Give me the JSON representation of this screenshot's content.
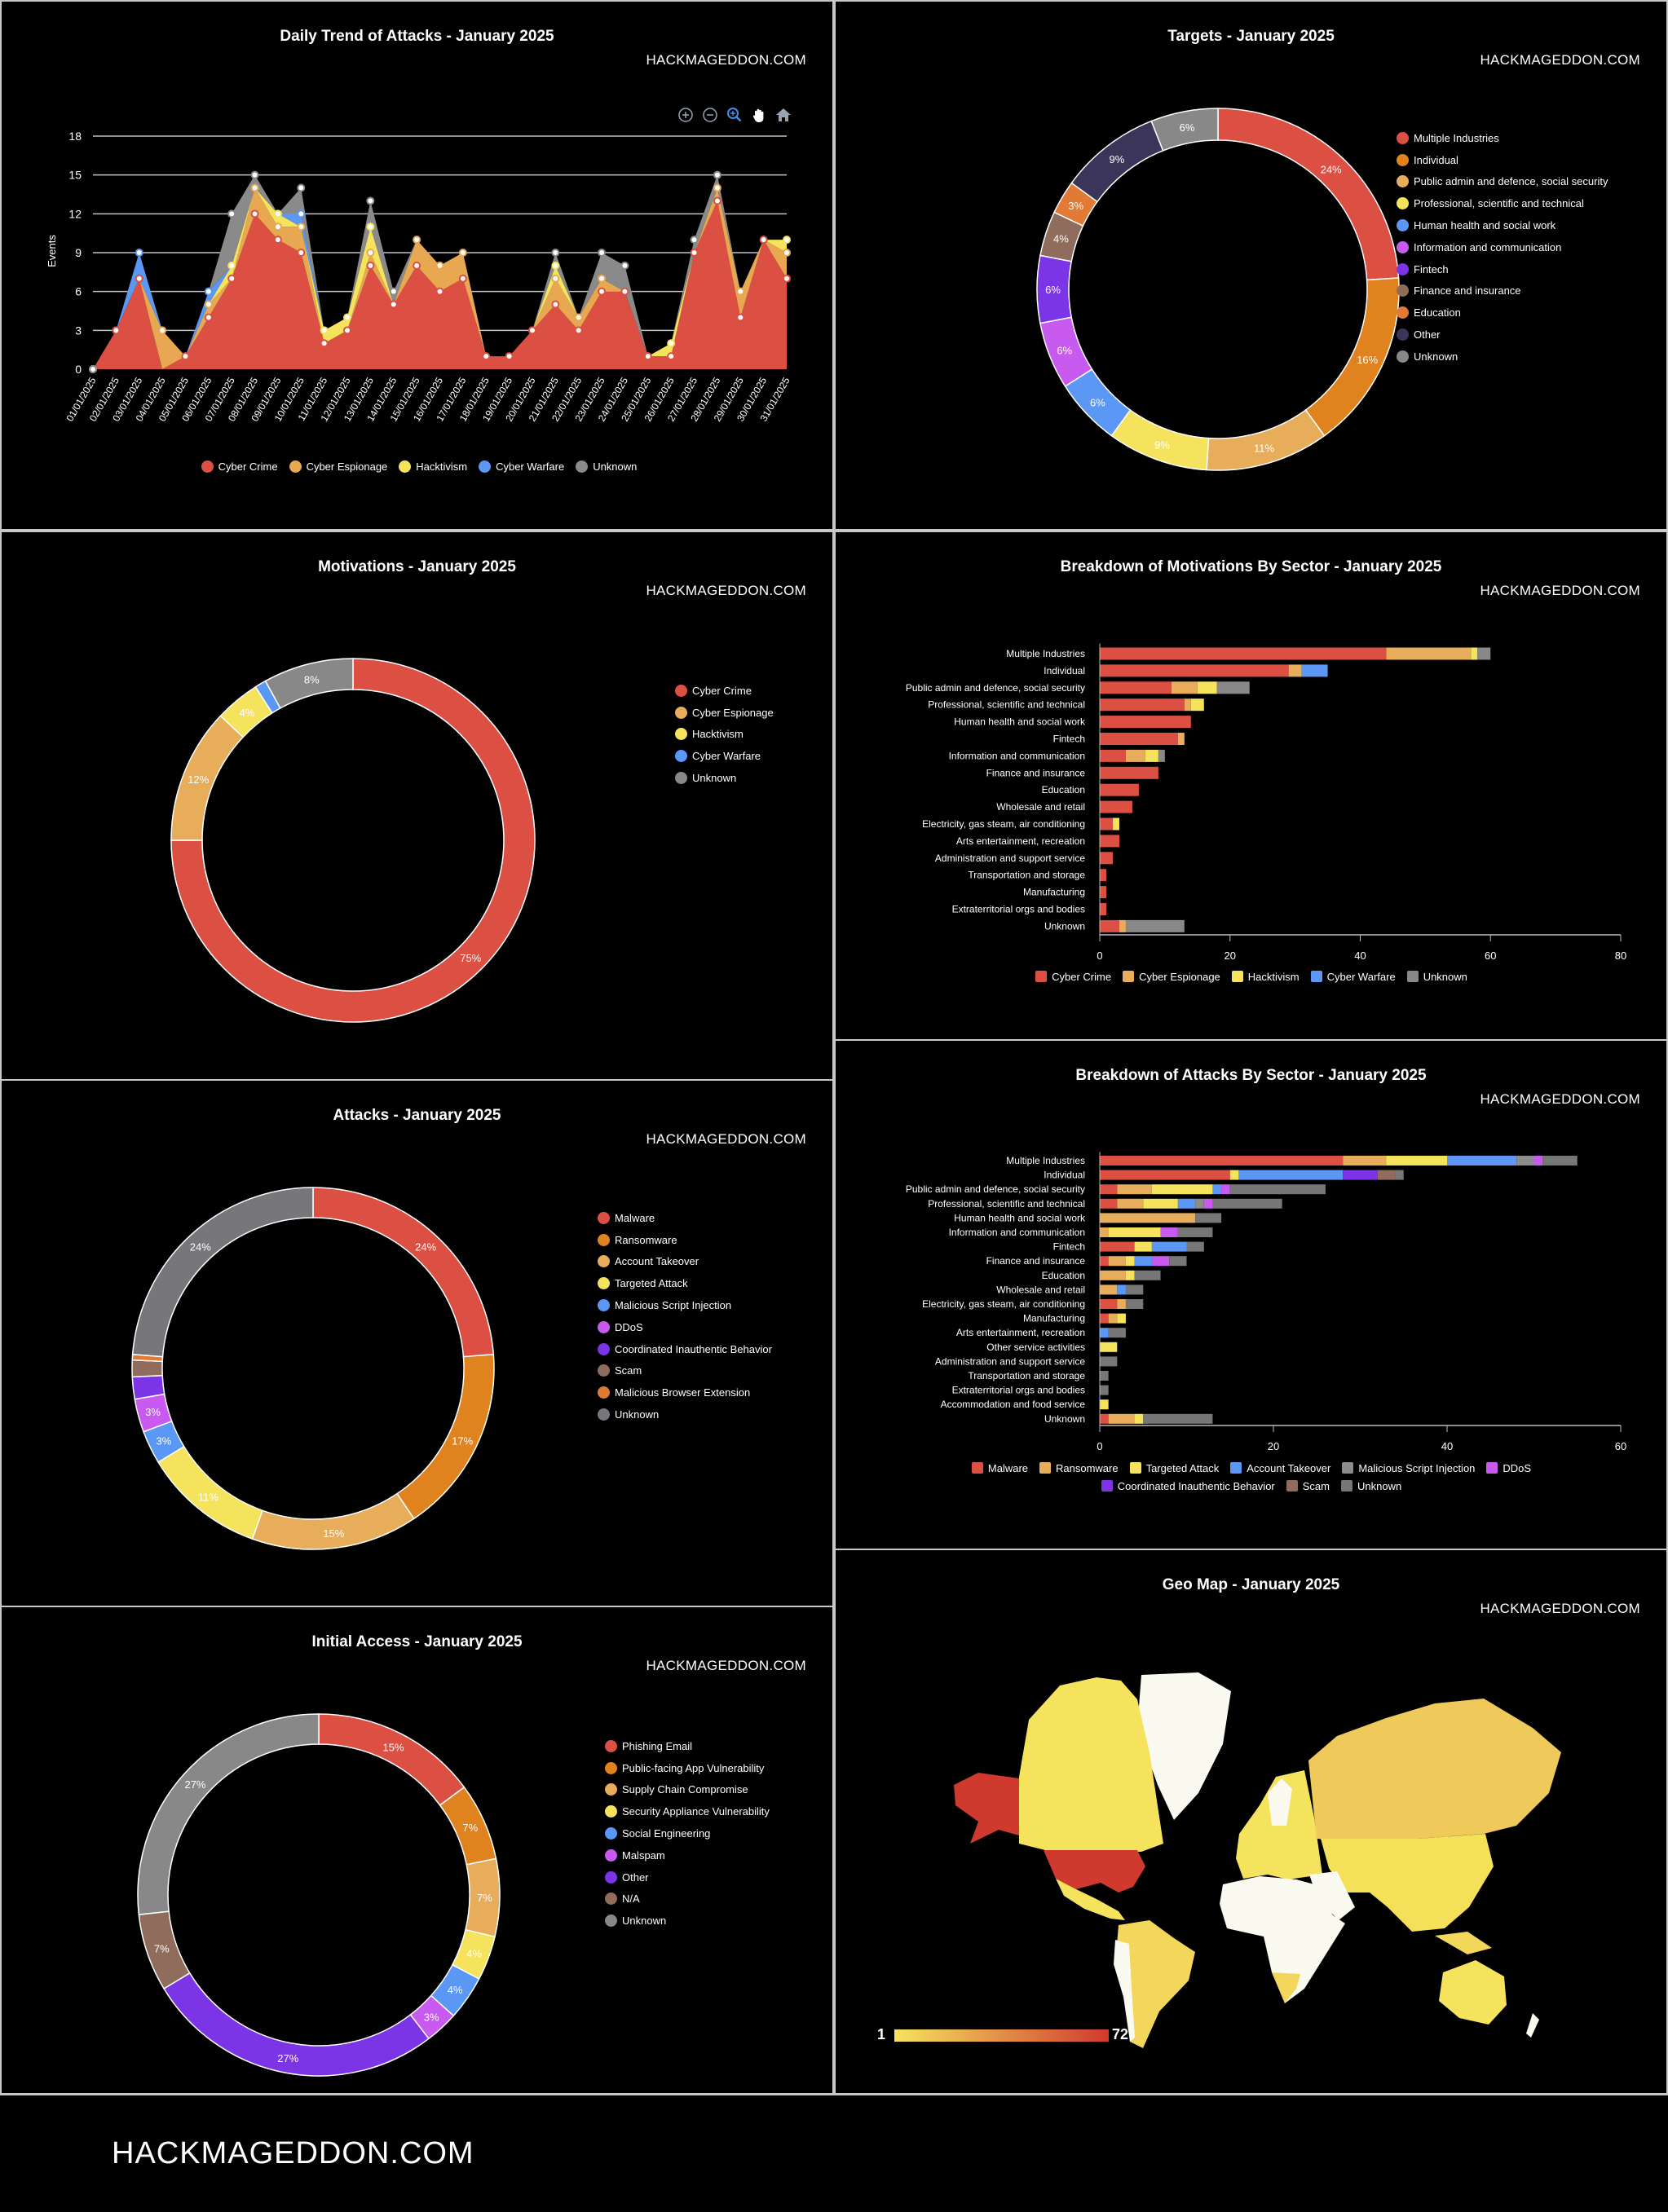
{
  "watermark": "HACKMAGEDDON.COM",
  "footer": {
    "brand": "HACKMAGEDDON.COM"
  },
  "chart_data": [
    {
      "type": "area",
      "stacked": true,
      "title": "Daily Trend of Attacks - January 2025",
      "ylabel": "Events",
      "xlabel": "",
      "ylim": [
        0,
        18
      ],
      "yticks": [
        0,
        3,
        6,
        9,
        12,
        15,
        18
      ],
      "grid": true,
      "legend": "bottom",
      "x": [
        "01/01/2025",
        "02/01/2025",
        "03/01/2025",
        "04/01/2025",
        "05/01/2025",
        "06/01/2025",
        "07/01/2025",
        "08/01/2025",
        "09/01/2025",
        "10/01/2025",
        "11/01/2025",
        "12/01/2025",
        "13/01/2025",
        "14/01/2025",
        "15/01/2025",
        "16/01/2025",
        "17/01/2025",
        "18/01/2025",
        "19/01/2025",
        "20/01/2025",
        "21/01/2025",
        "22/01/2025",
        "23/01/2025",
        "24/01/2025",
        "25/01/2025",
        "26/01/2025",
        "27/01/2025",
        "28/01/2025",
        "29/01/2025",
        "30/01/2025",
        "31/01/2025"
      ],
      "series": [
        {
          "name": "Cyber Crime",
          "color": "#dc5044",
          "values": [
            0,
            3,
            7,
            0,
            1,
            4,
            7,
            12,
            10,
            9,
            2,
            3,
            8,
            5,
            8,
            6,
            7,
            1,
            1,
            3,
            5,
            3,
            6,
            6,
            1,
            1,
            9,
            13,
            4,
            10,
            7
          ]
        },
        {
          "name": "Cyber Espionage",
          "color": "#e8a852",
          "values": [
            0,
            0,
            0,
            3,
            0,
            1,
            0,
            2,
            1,
            2,
            0,
            0,
            1,
            0,
            2,
            2,
            2,
            0,
            0,
            0,
            2,
            1,
            1,
            0,
            0,
            0,
            0,
            1,
            2,
            0,
            2
          ]
        },
        {
          "name": "Hacktivism",
          "color": "#f5e35e",
          "values": [
            0,
            0,
            0,
            0,
            0,
            0,
            1,
            0,
            1,
            0,
            1,
            1,
            2,
            0,
            0,
            0,
            0,
            0,
            0,
            0,
            1,
            0,
            0,
            0,
            0,
            1,
            0,
            0,
            0,
            0,
            1
          ]
        },
        {
          "name": "Cyber Warfare",
          "color": "#5b97f5",
          "values": [
            0,
            0,
            2,
            0,
            0,
            1,
            0,
            0,
            0,
            1,
            0,
            0,
            0,
            0,
            0,
            0,
            0,
            0,
            0,
            0,
            0,
            0,
            0,
            0,
            0,
            0,
            0,
            0,
            0,
            0,
            0
          ]
        },
        {
          "name": "Unknown",
          "color": "#8a8a8a",
          "values": [
            0,
            0,
            0,
            0,
            0,
            0,
            4,
            1,
            0,
            2,
            0,
            0,
            2,
            1,
            0,
            0,
            0,
            0,
            0,
            0,
            1,
            0,
            2,
            2,
            0,
            0,
            1,
            1,
            0,
            0,
            0
          ]
        }
      ],
      "toolbar": [
        "zoom-in",
        "zoom-out",
        "zoom-selection",
        "pan",
        "reset-home"
      ]
    },
    {
      "type": "pie",
      "donut": true,
      "title": "Targets - January 2025",
      "legend": "right",
      "labels": [
        "Multiple Industries",
        "Individual",
        "Public admin and defence, social security",
        "Professional, scientific and technical",
        "Human health and social work",
        "Information and communication",
        "Fintech",
        "Finance and insurance",
        "Education",
        "Other",
        "Unknown"
      ],
      "values": [
        24,
        16,
        11,
        9,
        6,
        6,
        6,
        4,
        3,
        9,
        6
      ],
      "colors": [
        "#dc5044",
        "#e0821e",
        "#e8ad5a",
        "#f5e35e",
        "#5b97f5",
        "#c95af0",
        "#7b35e6",
        "#8f6c5c",
        "#e07a35",
        "#3b3659",
        "#888888"
      ]
    },
    {
      "type": "pie",
      "donut": true,
      "title": "Motivations - January 2025",
      "legend": "right",
      "labels": [
        "Cyber Crime",
        "Cyber Espionage",
        "Hacktivism",
        "Cyber Warfare",
        "Unknown"
      ],
      "values": [
        75,
        12,
        4,
        1,
        8
      ],
      "colors": [
        "#dc5044",
        "#e8ad5a",
        "#f5e35e",
        "#5b97f5",
        "#888888"
      ]
    },
    {
      "type": "bar",
      "orientation": "horizontal",
      "stacked": true,
      "title": "Breakdown of Motivations By Sector - January 2025",
      "xlim": [
        0,
        80
      ],
      "xticks": [
        0,
        20,
        40,
        60,
        80
      ],
      "legend": "bottom",
      "categories": [
        "Multiple Industries",
        "Individual",
        "Public admin and defence, social security",
        "Professional, scientific and technical",
        "Human health and social work",
        "Fintech",
        "Information and communication",
        "Finance and insurance",
        "Education",
        "Wholesale and retail",
        "Electricity, gas steam, air conditioning",
        "Arts entertainment, recreation",
        "Administration and support service",
        "Transportation and storage",
        "Manufacturing",
        "Extraterritorial orgs and bodies",
        "Unknown"
      ],
      "series": [
        {
          "name": "Cyber Crime",
          "color": "#dc5044",
          "values": [
            44,
            29,
            11,
            13,
            14,
            12,
            4,
            9,
            6,
            5,
            2,
            3,
            2,
            1,
            1,
            1,
            3
          ]
        },
        {
          "name": "Cyber Espionage",
          "color": "#e8ad5a",
          "values": [
            13,
            2,
            4,
            1,
            0,
            1,
            3,
            0,
            0,
            0,
            0,
            0,
            0,
            0,
            0,
            0,
            1
          ]
        },
        {
          "name": "Hacktivism",
          "color": "#f5e35e",
          "values": [
            1,
            0,
            3,
            2,
            0,
            0,
            2,
            0,
            0,
            0,
            1,
            0,
            0,
            0,
            0,
            0,
            0
          ]
        },
        {
          "name": "Cyber Warfare",
          "color": "#5b97f5",
          "values": [
            0,
            4,
            0,
            0,
            0,
            0,
            0,
            0,
            0,
            0,
            0,
            0,
            0,
            0,
            0,
            0,
            0
          ]
        },
        {
          "name": "Unknown",
          "color": "#888888",
          "values": [
            2,
            0,
            5,
            0,
            0,
            0,
            1,
            0,
            0,
            0,
            0,
            0,
            0,
            0,
            0,
            0,
            9
          ]
        }
      ]
    },
    {
      "type": "pie",
      "donut": true,
      "title": "Attacks - January 2025",
      "legend": "right",
      "labels": [
        "Malware",
        "Ransomware",
        "Account Takeover",
        "Targeted Attack",
        "Malicious Script Injection",
        "DDoS",
        "Coordinated Inauthentic Behavior",
        "Scam",
        "Malicious Browser Extension",
        "Unknown"
      ],
      "values": [
        24,
        17,
        15,
        11,
        3,
        3,
        2,
        1.5,
        0.5,
        24
      ],
      "colors": [
        "#dc5044",
        "#e0821e",
        "#e8ad5a",
        "#f5e35e",
        "#5b97f5",
        "#c95af0",
        "#7b35e6",
        "#8f6c5c",
        "#e07a35",
        "#77767b"
      ]
    },
    {
      "type": "bar",
      "orientation": "horizontal",
      "stacked": true,
      "title": "Breakdown of Attacks By Sector - January 2025",
      "xlim": [
        0,
        60
      ],
      "xticks": [
        0,
        20,
        40,
        60
      ],
      "legend": "bottom",
      "categories": [
        "Multiple Industries",
        "Individual",
        "Public admin and defence, social security",
        "Professional, scientific and technical",
        "Human health and social work",
        "Information and communication",
        "Fintech",
        "Finance and insurance",
        "Education",
        "Wholesale and retail",
        "Electricity, gas steam, air conditioning",
        "Manufacturing",
        "Arts entertainment, recreation",
        "Other service activities",
        "Administration and support service",
        "Transportation and storage",
        "Extraterritorial orgs and bodies",
        "Accommodation and food service",
        "Unknown"
      ],
      "series": [
        {
          "name": "Malware",
          "color": "#dc5044",
          "values": [
            28,
            15,
            2,
            2,
            0,
            0,
            4,
            1,
            0,
            0,
            2,
            1,
            0,
            0,
            0,
            0,
            0,
            0,
            1
          ]
        },
        {
          "name": "Ransomware",
          "color": "#e8ad5a",
          "values": [
            5,
            0,
            4,
            3,
            11,
            1,
            0,
            2,
            3,
            2,
            1,
            1,
            0,
            0,
            0,
            0,
            0,
            0,
            3
          ]
        },
        {
          "name": "Targeted Attack",
          "color": "#f5e35e",
          "values": [
            7,
            1,
            7,
            4,
            0,
            6,
            2,
            1,
            1,
            0,
            0,
            1,
            0,
            2,
            0,
            0,
            0,
            1,
            1
          ]
        },
        {
          "name": "Account Takeover",
          "color": "#5b97f5",
          "values": [
            8,
            12,
            1,
            2,
            0,
            0,
            4,
            2,
            0,
            1,
            0,
            0,
            1,
            0,
            0,
            0,
            0,
            0,
            0
          ]
        },
        {
          "name": "Malicious Script Injection",
          "color": "#8c8c8c",
          "values": [
            2,
            0,
            0,
            1,
            0,
            0,
            0,
            0,
            0,
            0,
            0,
            0,
            0,
            0,
            0,
            0,
            0,
            0,
            0
          ]
        },
        {
          "name": "DDoS",
          "color": "#c95af0",
          "values": [
            1,
            0,
            1,
            1,
            0,
            2,
            0,
            2,
            0,
            0,
            0,
            0,
            0,
            0,
            0,
            0,
            0,
            0,
            0
          ]
        },
        {
          "name": "Coordinated Inauthentic Behavior",
          "color": "#7b35e6",
          "values": [
            0,
            4,
            0,
            0,
            0,
            0,
            0,
            0,
            0,
            0,
            0,
            0,
            0,
            0,
            0,
            0,
            0,
            0,
            0
          ]
        },
        {
          "name": "Scam",
          "color": "#8f6c5c",
          "values": [
            0,
            2,
            0,
            0,
            0,
            0,
            0,
            0,
            0,
            0,
            0,
            0,
            0,
            0,
            0,
            0,
            0,
            0,
            0
          ]
        },
        {
          "name": "Unknown",
          "color": "#777777",
          "values": [
            4,
            1,
            11,
            8,
            3,
            4,
            2,
            2,
            3,
            2,
            2,
            0,
            2,
            0,
            2,
            1,
            1,
            0,
            8
          ]
        }
      ]
    },
    {
      "type": "pie",
      "donut": true,
      "title": "Initial Access - January 2025",
      "legend": "right",
      "labels": [
        "Phishing Email",
        "Public-facing App Vulnerability",
        "Supply Chain Compromise",
        "Security Appliance Vulnerability",
        "Social Engineering",
        "Malspam",
        "Other",
        "N/A",
        "Unknown"
      ],
      "values": [
        15,
        7,
        7,
        4,
        4,
        3,
        27,
        7,
        27
      ],
      "colors": [
        "#dc5044",
        "#e0821e",
        "#e8ad5a",
        "#f5e35e",
        "#5b97f5",
        "#c95af0",
        "#7b35e6",
        "#8f6c5c",
        "#888888"
      ]
    },
    {
      "type": "map",
      "title": "Geo Map - January 2025",
      "scale": {
        "min": 1,
        "max": 72,
        "min_label": "1",
        "max_label": "72",
        "min_color": "#f5e35e",
        "max_color": "#d03a2e"
      }
    }
  ]
}
